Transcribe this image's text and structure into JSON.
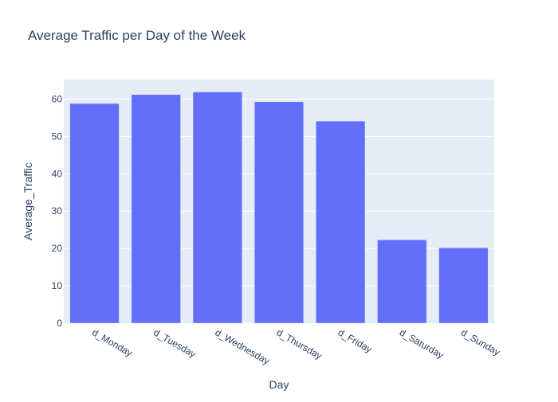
{
  "chart_data": {
    "type": "bar",
    "title": "Average Traffic per Day of the Week",
    "xlabel": "Day",
    "ylabel": "Average_Traffic",
    "categories": [
      "d_Monday",
      "d_Tuesday",
      "d_Wednesday",
      "d_Thursday",
      "d_Friday",
      "d_Saturday",
      "d_Sunday"
    ],
    "values": [
      58.8,
      61.2,
      61.9,
      59.3,
      54.1,
      22.3,
      20.2
    ],
    "ylim": [
      0,
      65.2
    ],
    "yticks": [
      0,
      10,
      20,
      30,
      40,
      50,
      60
    ],
    "grid": true,
    "legend": false,
    "colors": {
      "bar": "#636efa",
      "plot_bg": "#e5ecf6",
      "grid": "#ffffff",
      "text": "#2a3f5f"
    }
  }
}
